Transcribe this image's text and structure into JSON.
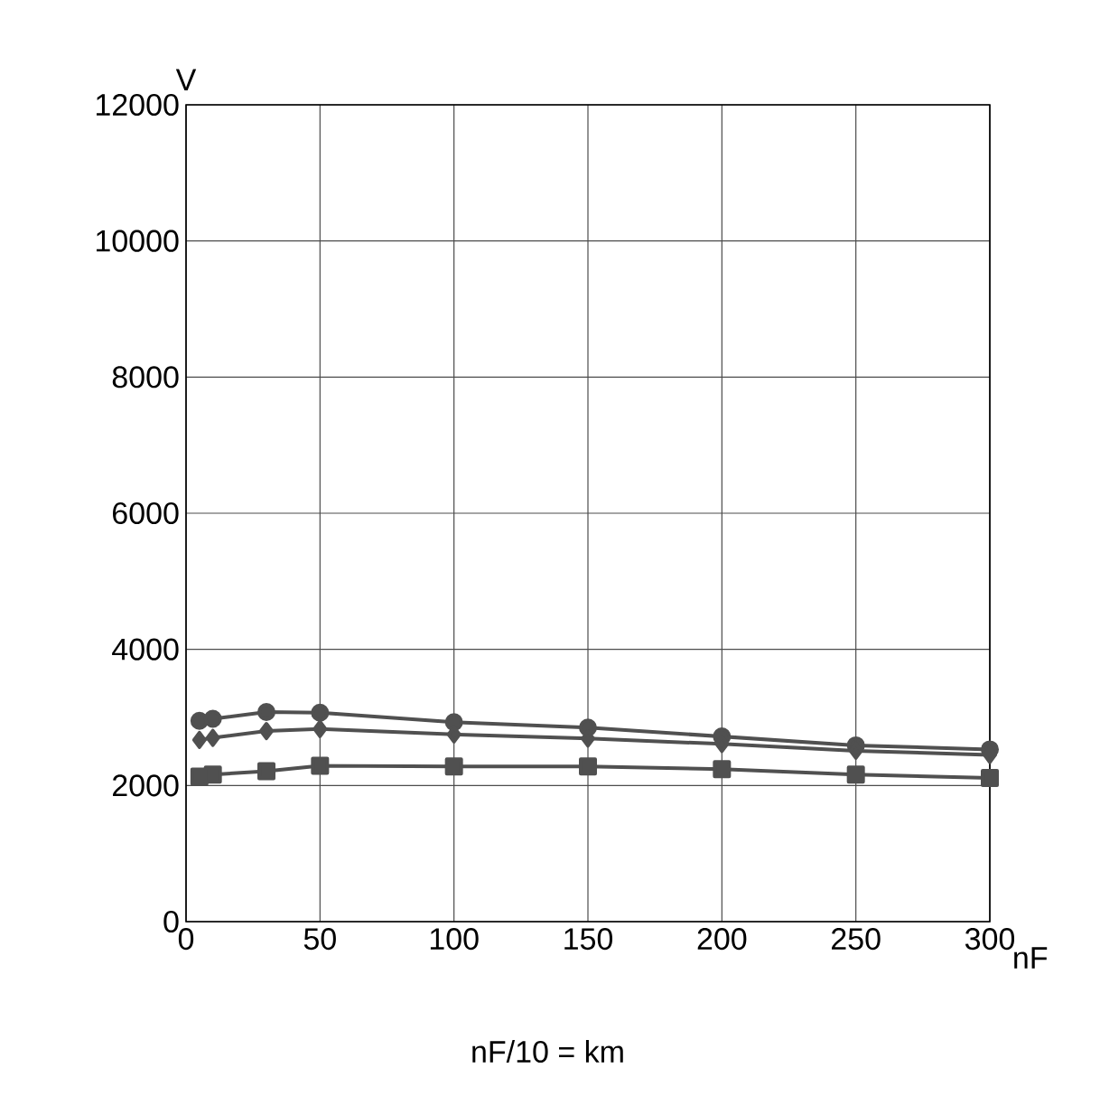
{
  "chart_data": {
    "type": "line",
    "ylabel": "V",
    "xlabel": "nF",
    "annotations": [
      "nF/10 = km"
    ],
    "x": [
      5,
      10,
      30,
      50,
      100,
      150,
      200,
      250,
      300
    ],
    "series": [
      {
        "color": "#505050",
        "marker": "circle",
        "values": [
          2950,
          2980,
          3080,
          3070,
          2930,
          2850,
          2720,
          2590,
          2530
        ]
      },
      {
        "color": "#505050",
        "marker": "diamond",
        "values": [
          2670,
          2700,
          2800,
          2830,
          2750,
          2690,
          2610,
          2510,
          2450
        ]
      },
      {
        "color": "#505050",
        "marker": "square",
        "values": [
          2130,
          2160,
          2210,
          2290,
          2280,
          2280,
          2240,
          2160,
          2110
        ]
      }
    ],
    "xlim": [
      0,
      300
    ],
    "xticks": [
      0,
      50,
      100,
      150,
      200,
      250,
      300
    ],
    "ylim": [
      0,
      12000
    ],
    "yticks": [
      0,
      2000,
      4000,
      6000,
      8000,
      10000,
      12000
    ],
    "grid": true
  }
}
